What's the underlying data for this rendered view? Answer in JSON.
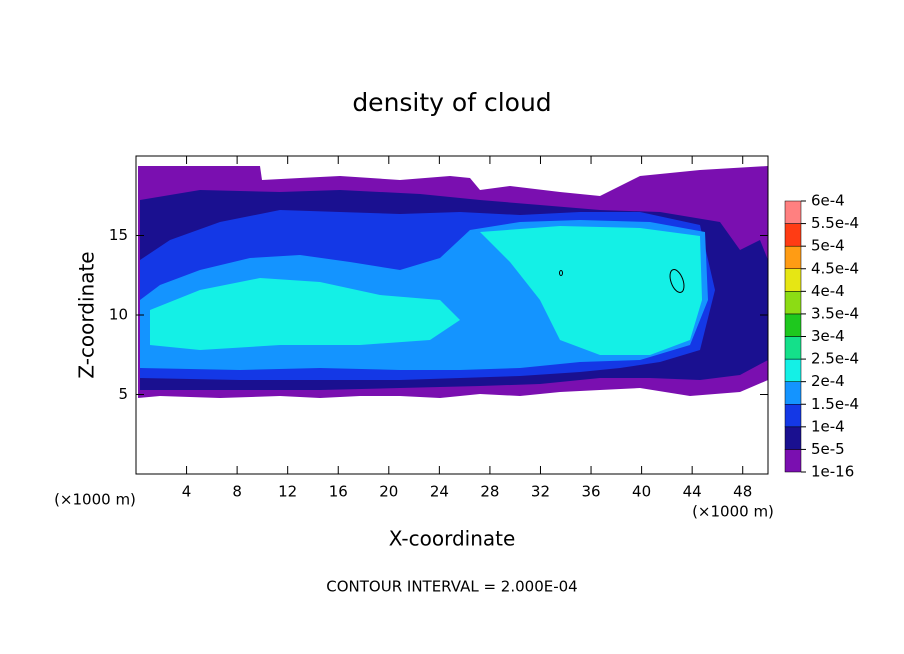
{
  "chart_data": {
    "type": "contour",
    "title": "density of cloud",
    "x_label": "X-coordinate",
    "y_label": "Z-coordinate",
    "y_units": "(×1000 m)",
    "x_units": "(×1000 m)",
    "annotation": "CONTOUR INTERVAL = 2.000E-04",
    "xlim": [
      0,
      50
    ],
    "ylim": [
      0,
      20
    ],
    "xticks": [
      4,
      8,
      12,
      16,
      20,
      24,
      28,
      32,
      36,
      40,
      44,
      48
    ],
    "yticks": [
      5,
      10,
      15
    ],
    "colorbar": {
      "ticks": [
        1e-16,
        {
          "value": 5e-05,
          "label": "5e-5"
        },
        {
          "value": 0.0001,
          "label": "1e-4"
        },
        {
          "value": 0.00015,
          "label": "1.5e-4"
        },
        {
          "value": 0.0002,
          "label": "2e-4"
        },
        {
          "value": 0.00025,
          "label": "2.5e-4"
        },
        {
          "value": 0.0003,
          "label": "3e-4"
        },
        {
          "value": 0.00035,
          "label": "3.5e-4"
        },
        {
          "value": 0.0004,
          "label": "4e-4"
        },
        {
          "value": 0.00045,
          "label": "4.5e-4"
        },
        {
          "value": 0.0005,
          "label": "5e-4"
        },
        {
          "value": 0.00055,
          "label": "5.5e-4"
        },
        {
          "value": 0.0006,
          "label": "6e-4"
        }
      ],
      "colors": [
        "#7a0fb0",
        "#1a1090",
        "#1438e6",
        "#1494ff",
        "#14f0e6",
        "#14e08a",
        "#1ec81e",
        "#8cdc14",
        "#e6e614",
        "#ff9c14",
        "#ff3c14",
        "#ff8080"
      ]
    }
  }
}
